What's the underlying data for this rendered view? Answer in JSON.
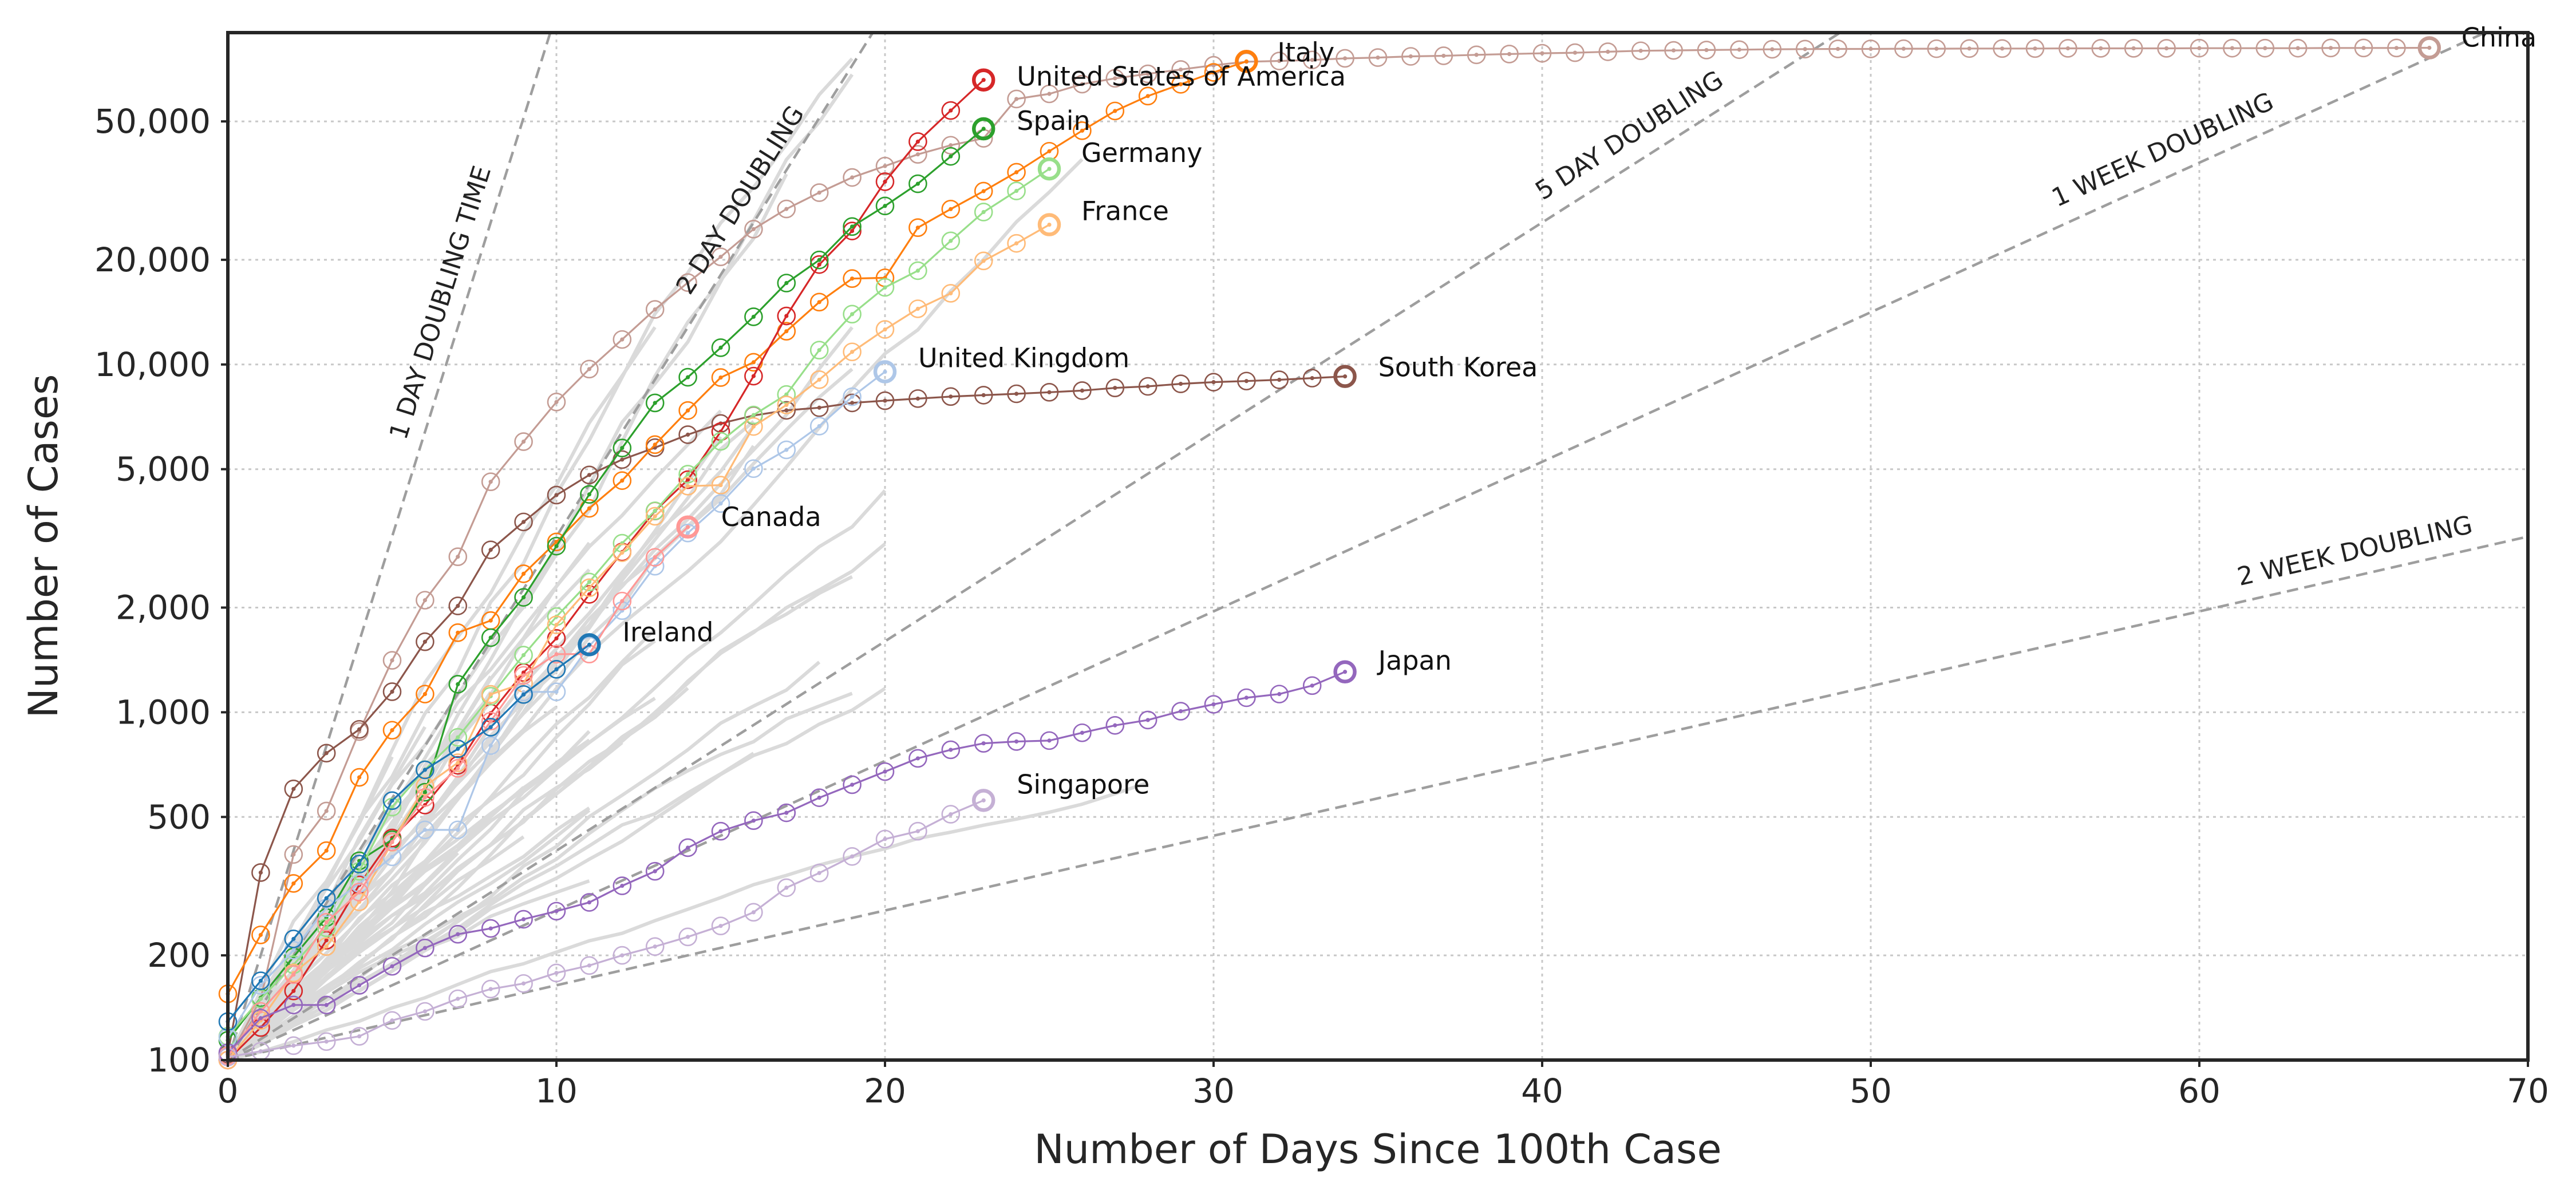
{
  "chart_data": {
    "type": "line",
    "xlabel": "Number of Days Since 100th Case",
    "ylabel": "Number of Cases",
    "xlim": [
      0,
      70
    ],
    "ylim": [
      100,
      90000
    ],
    "yscale": "log",
    "grid": true,
    "xticks": [
      0,
      10,
      20,
      30,
      40,
      50,
      60,
      70
    ],
    "xtick_labels": [
      "0",
      "10",
      "20",
      "30",
      "40",
      "50",
      "60",
      "70"
    ],
    "yticks": [
      100,
      200,
      500,
      1000,
      2000,
      5000,
      10000,
      20000,
      50000
    ],
    "ytick_labels": [
      "100",
      "200",
      "500",
      "1,000",
      "2,000",
      "5,000",
      "10,000",
      "20,000",
      "50,000"
    ],
    "doubling_guides": [
      {
        "label": "1 DAY DOUBLING TIME",
        "days": 1
      },
      {
        "label": "2 DAY DOUBLING",
        "days": 2
      },
      {
        "label": "5 DAY DOUBLING",
        "days": 5
      },
      {
        "label": "1 WEEK DOUBLING",
        "days": 7
      },
      {
        "label": "2 WEEK DOUBLING",
        "days": 14
      }
    ],
    "series": [
      {
        "name": "China",
        "color": "#c49c94",
        "highlight": false,
        "values": [
          100,
          150,
          390,
          520,
          880,
          1410,
          2100,
          2800,
          4600,
          6000,
          7800,
          9700,
          11800,
          14400,
          17200,
          20400,
          24500,
          28000,
          31200,
          34500,
          37200,
          40200,
          42700,
          44700,
          58000,
          60000,
          64000,
          66500,
          68500,
          70500,
          72500,
          74200,
          74600,
          75100,
          75900,
          76300,
          76900,
          77200,
          77700,
          78100,
          78500,
          78800,
          79300,
          79800,
          80000,
          80200,
          80400,
          80600,
          80700,
          80800,
          80800,
          80900,
          80900,
          81000,
          81000,
          81000,
          81100,
          81100,
          81100,
          81100,
          81200,
          81200,
          81200,
          81200,
          81300,
          81300,
          81300,
          81400
        ]
      },
      {
        "name": "South Korea",
        "color": "#8c564b",
        "highlight": false,
        "values": [
          104,
          346,
          602,
          763,
          893,
          1146,
          1595,
          2022,
          2931,
          3526,
          4212,
          4812,
          5328,
          5766,
          6284,
          6767,
          7134,
          7382,
          7513,
          7755,
          7869,
          7979,
          8086,
          8162,
          8236,
          8320,
          8413,
          8565,
          8652,
          8799,
          8897,
          8961,
          9037,
          9137,
          9241
        ]
      },
      {
        "name": "Italy",
        "color": "#ff7f0e",
        "highlight": false,
        "values": [
          155,
          229,
          322,
          400,
          650,
          888,
          1128,
          1694,
          1835,
          2502,
          3089,
          3858,
          4636,
          5883,
          7375,
          9172,
          10149,
          12462,
          15113,
          17660,
          17750,
          24747,
          27980,
          31506,
          35713,
          41035,
          47021,
          53578,
          59138,
          63927,
          69176,
          74386
        ]
      },
      {
        "name": "United States of America",
        "color": "#d62728",
        "highlight": true,
        "values": [
          100,
          124,
          158,
          221,
          319,
          435,
          541,
          704,
          994,
          1301,
          1631,
          2183,
          2890,
          3791,
          4664,
          6411,
          9259,
          13789,
          19383,
          24207,
          33546,
          43734,
          53740,
          65778
        ]
      },
      {
        "name": "Spain",
        "color": "#2ca02c",
        "highlight": true,
        "values": [
          114,
          151,
          198,
          257,
          374,
          430,
          589,
          1204,
          1639,
          2140,
          3004,
          4231,
          5753,
          7753,
          9191,
          11178,
          13716,
          17147,
          19980,
          24926,
          28572,
          33089,
          39673,
          47610
        ]
      },
      {
        "name": "Germany",
        "color": "#98df8a",
        "highlight": false,
        "values": [
          117,
          150,
          188,
          240,
          349,
          534,
          684,
          847,
          1112,
          1460,
          1884,
          2369,
          3062,
          3795,
          4838,
          6012,
          7156,
          8198,
          10999,
          13957,
          16662,
          18610,
          22672,
          27436,
          31554,
          36508
        ]
      },
      {
        "name": "France",
        "color": "#ffbb78",
        "highlight": false,
        "values": [
          100,
          130,
          178,
          212,
          285,
          423,
          613,
          716,
          1126,
          1212,
          1784,
          2281,
          2876,
          3661,
          4469,
          4499,
          6633,
          7652,
          9043,
          10871,
          12612,
          14459,
          16018,
          19856,
          22302,
          25233
        ]
      },
      {
        "name": "United Kingdom",
        "color": "#aec7e8",
        "highlight": false,
        "values": [
          116,
          164,
          207,
          274,
          322,
          384,
          459,
          459,
          802,
          1144,
          1145,
          1551,
          1960,
          2630,
          3277,
          3983,
          5018,
          5683,
          6650,
          8077,
          9529
        ]
      },
      {
        "name": "Canada",
        "color": "#ff9896",
        "highlight": false,
        "values": [
          103,
          138,
          176,
          249,
          304,
          424,
          569,
          690,
          943,
          1277,
          1469,
          1470,
          2088,
          2790,
          3409
        ]
      },
      {
        "name": "Ireland",
        "color": "#1f77b4",
        "highlight": false,
        "values": [
          129,
          169,
          223,
          292,
          366,
          557,
          683,
          785,
          906,
          1125,
          1329,
          1564
        ]
      },
      {
        "name": "Japan",
        "color": "#9467bd",
        "highlight": false,
        "values": [
          105,
          132,
          144,
          144,
          164,
          186,
          210,
          230,
          239,
          254,
          268,
          284,
          317,
          349,
          408,
          455,
          488,
          514,
          568,
          619,
          675,
          737,
          780,
          814,
          824,
          829,
          873,
          917,
          950,
          1007,
          1054,
          1101,
          1128,
          1193,
          1307
        ]
      },
      {
        "name": "Singapore",
        "color": "#c5b0d5",
        "highlight": false,
        "values": [
          102,
          106,
          110,
          113,
          117,
          130,
          138,
          150,
          160,
          166,
          178,
          187,
          200,
          212,
          226,
          243,
          266,
          313,
          345,
          385,
          432,
          455,
          509,
          558
        ]
      }
    ]
  }
}
